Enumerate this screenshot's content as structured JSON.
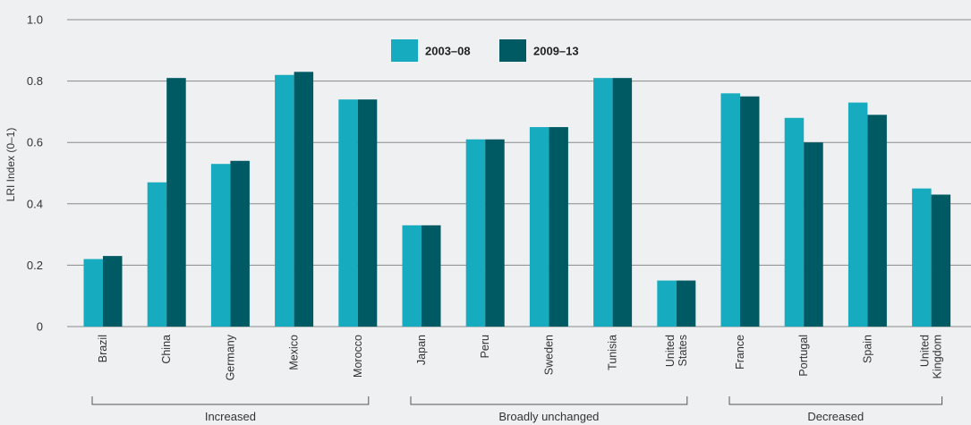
{
  "chart_data": {
    "type": "bar",
    "ylabel": "LRI Index (0–1)",
    "ylim": [
      0,
      1.0
    ],
    "yticks": [
      {
        "value": 0,
        "label": "0"
      },
      {
        "value": 0.2,
        "label": "0.2"
      },
      {
        "value": 0.4,
        "label": "0.4"
      },
      {
        "value": 0.6,
        "label": "0.6"
      },
      {
        "value": 0.8,
        "label": "0.8"
      },
      {
        "value": 1.0,
        "label": "1.0"
      }
    ],
    "grid": true,
    "legend_position": "top-center",
    "categories": [
      {
        "label": [
          "Brazil"
        ],
        "group": 0
      },
      {
        "label": [
          "China"
        ],
        "group": 0
      },
      {
        "label": [
          "Germany"
        ],
        "group": 0
      },
      {
        "label": [
          "Mexico"
        ],
        "group": 0
      },
      {
        "label": [
          "Morocco"
        ],
        "group": 0
      },
      {
        "label": [
          "Japan"
        ],
        "group": 1
      },
      {
        "label": [
          "Peru"
        ],
        "group": 1
      },
      {
        "label": [
          "Sweden"
        ],
        "group": 1
      },
      {
        "label": [
          "Tunisia"
        ],
        "group": 1
      },
      {
        "label": [
          "United",
          "States"
        ],
        "group": 1
      },
      {
        "label": [
          "France"
        ],
        "group": 2
      },
      {
        "label": [
          "Portugal"
        ],
        "group": 2
      },
      {
        "label": [
          "Spain"
        ],
        "group": 2
      },
      {
        "label": [
          "United",
          "Kingdom"
        ],
        "group": 2
      }
    ],
    "groups": [
      "Increased",
      "Broadly unchanged",
      "Decreased"
    ],
    "series": [
      {
        "name": "2003–08",
        "color": "#17abbf",
        "values": [
          0.22,
          0.47,
          0.53,
          0.82,
          0.74,
          0.33,
          0.61,
          0.65,
          0.81,
          0.15,
          0.76,
          0.68,
          0.73,
          0.45
        ]
      },
      {
        "name": "2009–13",
        "color": "#005a64",
        "values": [
          0.23,
          0.81,
          0.54,
          0.83,
          0.74,
          0.33,
          0.61,
          0.65,
          0.81,
          0.15,
          0.75,
          0.6,
          0.69,
          0.43
        ]
      }
    ]
  }
}
